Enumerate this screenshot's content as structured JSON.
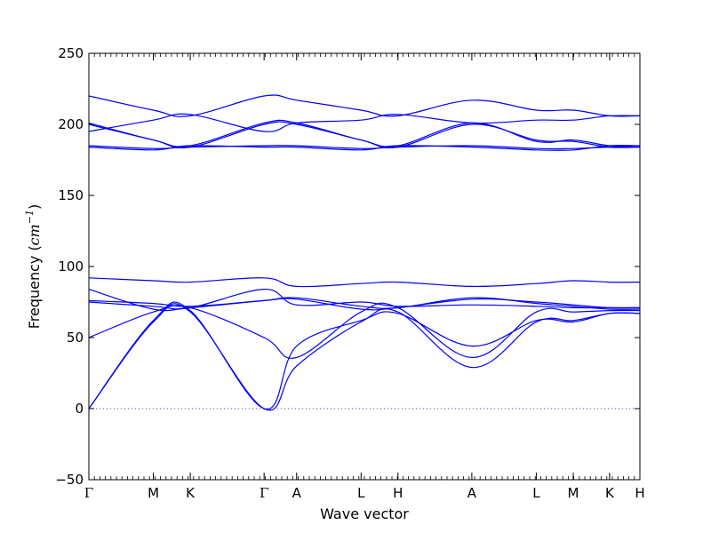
{
  "chart_data": {
    "type": "line",
    "title": "",
    "xlabel": "Wave vector",
    "ylabel_prefix": "Frequency (",
    "ylabel_unit": "cm",
    "ylabel_exp": "−1",
    "ylabel_suffix": ")",
    "ylim": [
      -50,
      250
    ],
    "yticks": [
      -50,
      0,
      50,
      100,
      150,
      200,
      250
    ],
    "xlim": [
      0,
      10
    ],
    "xticks": [
      {
        "x": 0.0,
        "label": "Γ"
      },
      {
        "x": 1.17,
        "label": "M"
      },
      {
        "x": 1.84,
        "label": "K"
      },
      {
        "x": 3.18,
        "label": "Γ"
      },
      {
        "x": 3.77,
        "label": "A"
      },
      {
        "x": 4.94,
        "label": "L"
      },
      {
        "x": 5.61,
        "label": "H"
      },
      {
        "x": 6.95,
        "label": "A"
      },
      {
        "x": 8.12,
        "label": "L"
      },
      {
        "x": 8.79,
        "label": "M"
      },
      {
        "x": 9.45,
        "label": "K"
      },
      {
        "x": 10.0,
        "label": "H"
      }
    ],
    "zero_line": true,
    "line_color": "#0000ff",
    "series": [
      {
        "points": [
          [
            0,
            0
          ],
          [
            1.17,
            61
          ],
          [
            1.84,
            68
          ],
          [
            3.18,
            0
          ],
          [
            3.77,
            30
          ],
          [
            4.94,
            61
          ],
          [
            5.61,
            68
          ],
          [
            6.95,
            29
          ],
          [
            8.12,
            61
          ],
          [
            8.79,
            62
          ],
          [
            9.45,
            67
          ],
          [
            10,
            67
          ]
        ]
      },
      {
        "points": [
          [
            0,
            0
          ],
          [
            1.17,
            62
          ],
          [
            1.84,
            69
          ],
          [
            3.18,
            0
          ],
          [
            3.77,
            44
          ],
          [
            4.94,
            62
          ],
          [
            5.61,
            67
          ],
          [
            6.95,
            44
          ],
          [
            8.12,
            62
          ],
          [
            8.79,
            61
          ],
          [
            9.45,
            67
          ],
          [
            10,
            67
          ]
        ]
      },
      {
        "points": [
          [
            0,
            50
          ],
          [
            1.17,
            68
          ],
          [
            1.84,
            71
          ],
          [
            3.18,
            50
          ],
          [
            3.77,
            36
          ],
          [
            4.94,
            68
          ],
          [
            5.61,
            71
          ],
          [
            6.95,
            36
          ],
          [
            8.12,
            68
          ],
          [
            8.79,
            68
          ],
          [
            9.45,
            69
          ],
          [
            10,
            69
          ]
        ]
      },
      {
        "points": [
          [
            0,
            75
          ],
          [
            1.17,
            72
          ],
          [
            1.84,
            71
          ],
          [
            3.18,
            84
          ],
          [
            3.77,
            73
          ],
          [
            4.94,
            75
          ],
          [
            5.61,
            72
          ],
          [
            6.95,
            73
          ],
          [
            8.12,
            72
          ],
          [
            8.79,
            71
          ],
          [
            9.45,
            71
          ],
          [
            10,
            71
          ]
        ]
      },
      {
        "points": [
          [
            0,
            84
          ],
          [
            1.17,
            70
          ],
          [
            1.84,
            71
          ],
          [
            3.18,
            76
          ],
          [
            3.77,
            77
          ],
          [
            4.94,
            70
          ],
          [
            5.61,
            71
          ],
          [
            6.95,
            77
          ],
          [
            8.12,
            75
          ],
          [
            8.79,
            73
          ],
          [
            9.45,
            71
          ],
          [
            10,
            71
          ]
        ]
      },
      {
        "points": [
          [
            0,
            76
          ],
          [
            1.17,
            74
          ],
          [
            1.84,
            72
          ],
          [
            3.18,
            76
          ],
          [
            3.77,
            78
          ],
          [
            4.94,
            72
          ],
          [
            5.61,
            71
          ],
          [
            6.95,
            78
          ],
          [
            8.12,
            74
          ],
          [
            8.79,
            72
          ],
          [
            9.45,
            70
          ],
          [
            10,
            70
          ]
        ]
      },
      {
        "points": [
          [
            0,
            92
          ],
          [
            1.17,
            90
          ],
          [
            1.84,
            89
          ],
          [
            3.18,
            92
          ],
          [
            3.77,
            86
          ],
          [
            4.94,
            88
          ],
          [
            5.61,
            89
          ],
          [
            6.95,
            86
          ],
          [
            8.12,
            88
          ],
          [
            8.79,
            90
          ],
          [
            9.45,
            89
          ],
          [
            10,
            89
          ]
        ]
      },
      {
        "points": [
          [
            0,
            185
          ],
          [
            1.17,
            183
          ],
          [
            1.84,
            184
          ],
          [
            3.18,
            185
          ],
          [
            3.77,
            185
          ],
          [
            4.94,
            183
          ],
          [
            5.61,
            184
          ],
          [
            6.95,
            185
          ],
          [
            8.12,
            183
          ],
          [
            8.79,
            183
          ],
          [
            9.45,
            184
          ],
          [
            10,
            184
          ]
        ]
      },
      {
        "points": [
          [
            0,
            184
          ],
          [
            1.17,
            182
          ],
          [
            1.84,
            185
          ],
          [
            3.18,
            184
          ],
          [
            3.77,
            184
          ],
          [
            4.94,
            182
          ],
          [
            5.61,
            185
          ],
          [
            6.95,
            184
          ],
          [
            8.12,
            182
          ],
          [
            8.79,
            182
          ],
          [
            9.45,
            185
          ],
          [
            10,
            185
          ]
        ]
      },
      {
        "points": [
          [
            0,
            201
          ],
          [
            1.17,
            189
          ],
          [
            1.84,
            185
          ],
          [
            3.18,
            201
          ],
          [
            3.77,
            201
          ],
          [
            4.94,
            189
          ],
          [
            5.61,
            185
          ],
          [
            6.95,
            201
          ],
          [
            8.12,
            188
          ],
          [
            8.79,
            189
          ],
          [
            9.45,
            185
          ],
          [
            10,
            185
          ]
        ]
      },
      {
        "points": [
          [
            0,
            200
          ],
          [
            1.17,
            189
          ],
          [
            1.84,
            184
          ],
          [
            3.18,
            200
          ],
          [
            3.77,
            200
          ],
          [
            4.94,
            189
          ],
          [
            5.61,
            184
          ],
          [
            6.95,
            200
          ],
          [
            8.12,
            189
          ],
          [
            8.79,
            188
          ],
          [
            9.45,
            184
          ],
          [
            10,
            184
          ]
        ]
      },
      {
        "points": [
          [
            0,
            195
          ],
          [
            1.17,
            203
          ],
          [
            1.84,
            207
          ],
          [
            3.18,
            195
          ],
          [
            3.77,
            201
          ],
          [
            4.94,
            203
          ],
          [
            5.61,
            207
          ],
          [
            6.95,
            201
          ],
          [
            8.12,
            203
          ],
          [
            8.79,
            203
          ],
          [
            9.45,
            206
          ],
          [
            10,
            206
          ]
        ]
      },
      {
        "points": [
          [
            0,
            220
          ],
          [
            1.17,
            210
          ],
          [
            1.84,
            206
          ],
          [
            3.18,
            220
          ],
          [
            3.77,
            217
          ],
          [
            4.94,
            210
          ],
          [
            5.61,
            206
          ],
          [
            6.95,
            217
          ],
          [
            8.12,
            210
          ],
          [
            8.79,
            210
          ],
          [
            9.45,
            206
          ],
          [
            10,
            206
          ]
        ]
      }
    ]
  }
}
